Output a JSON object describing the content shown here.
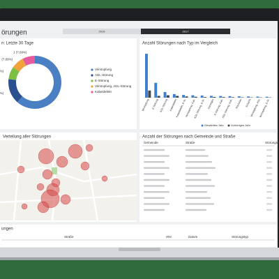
{
  "header": {
    "title": "örungen",
    "tabs": [
      "2016",
      "2017"
    ]
  },
  "donut": {
    "chart_data": {
      "type": "pie",
      "title": "n: Letzte 30 Tage",
      "series": [
        {
          "name": "Verstopfung",
          "color": "#4a7fc4",
          "values": [
            8
          ]
        },
        {
          "name": "ADL-Störung",
          "color": "#2c4f8f",
          "values": [
            2
          ],
          "value_labels": [
            "2 (15,38%)"
          ]
        },
        {
          "name": "E-Störung",
          "color": "#7cc043",
          "values": [
            1
          ],
          "value_labels": [
            "1 (7,69%)"
          ]
        },
        {
          "name": "Verstopfung, ADL-Störung",
          "color": "#f2a23b",
          "values": [
            1
          ],
          "value_labels": [
            "(7,69%)"
          ]
        },
        {
          "name": "Kabeldefekt",
          "color": "#e65b9c",
          "values": [
            1
          ],
          "value_labels": [
            "1 (7,69%)"
          ]
        }
      ]
    }
  },
  "bars": {
    "chart_data": {
      "type": "bar",
      "title": "Anzahl Störungen nach Typ im Vergleich",
      "categories": [
        "Verstopfung",
        "E-Störung",
        "ADL-Störung",
        "Kabeldefekt",
        "Kabeldefekt, E-St.",
        "Verstopfung, Kab.",
        "ADL-Störung, E-St.",
        "Sonstiges",
        "E-Störung, Kab.",
        "ADL-Störung, Kab.",
        "Rückstau",
        "Schacht",
        "Verstopfung, ADL",
        "Verstopfung, E-St."
      ],
      "series": [
        {
          "name": "Gewähltes Jahr",
          "color": "#3f7fcf",
          "values": [
            740,
            250,
            95,
            60,
            45,
            40,
            35,
            30,
            28,
            25,
            22,
            20,
            18,
            15
          ]
        },
        {
          "name": "Vorheriges Jahr",
          "color": "#404650",
          "values": [
            120,
            30,
            40,
            30,
            20,
            15,
            10,
            12,
            10,
            8,
            6,
            5,
            5,
            4
          ]
        }
      ],
      "ylim": [
        0,
        800
      ]
    }
  },
  "map": {
    "title": "Verteilung aller Störungen"
  },
  "table1": {
    "title": "Anzahl der Störungen nach Gemeinde und Straße",
    "columns": [
      "Gemeinde",
      "Straße",
      "Störungsa"
    ]
  },
  "table2": {
    "title": "ungen",
    "columns": [
      "Straße",
      "HNr.",
      "Datum",
      "Störungstyp"
    ]
  }
}
